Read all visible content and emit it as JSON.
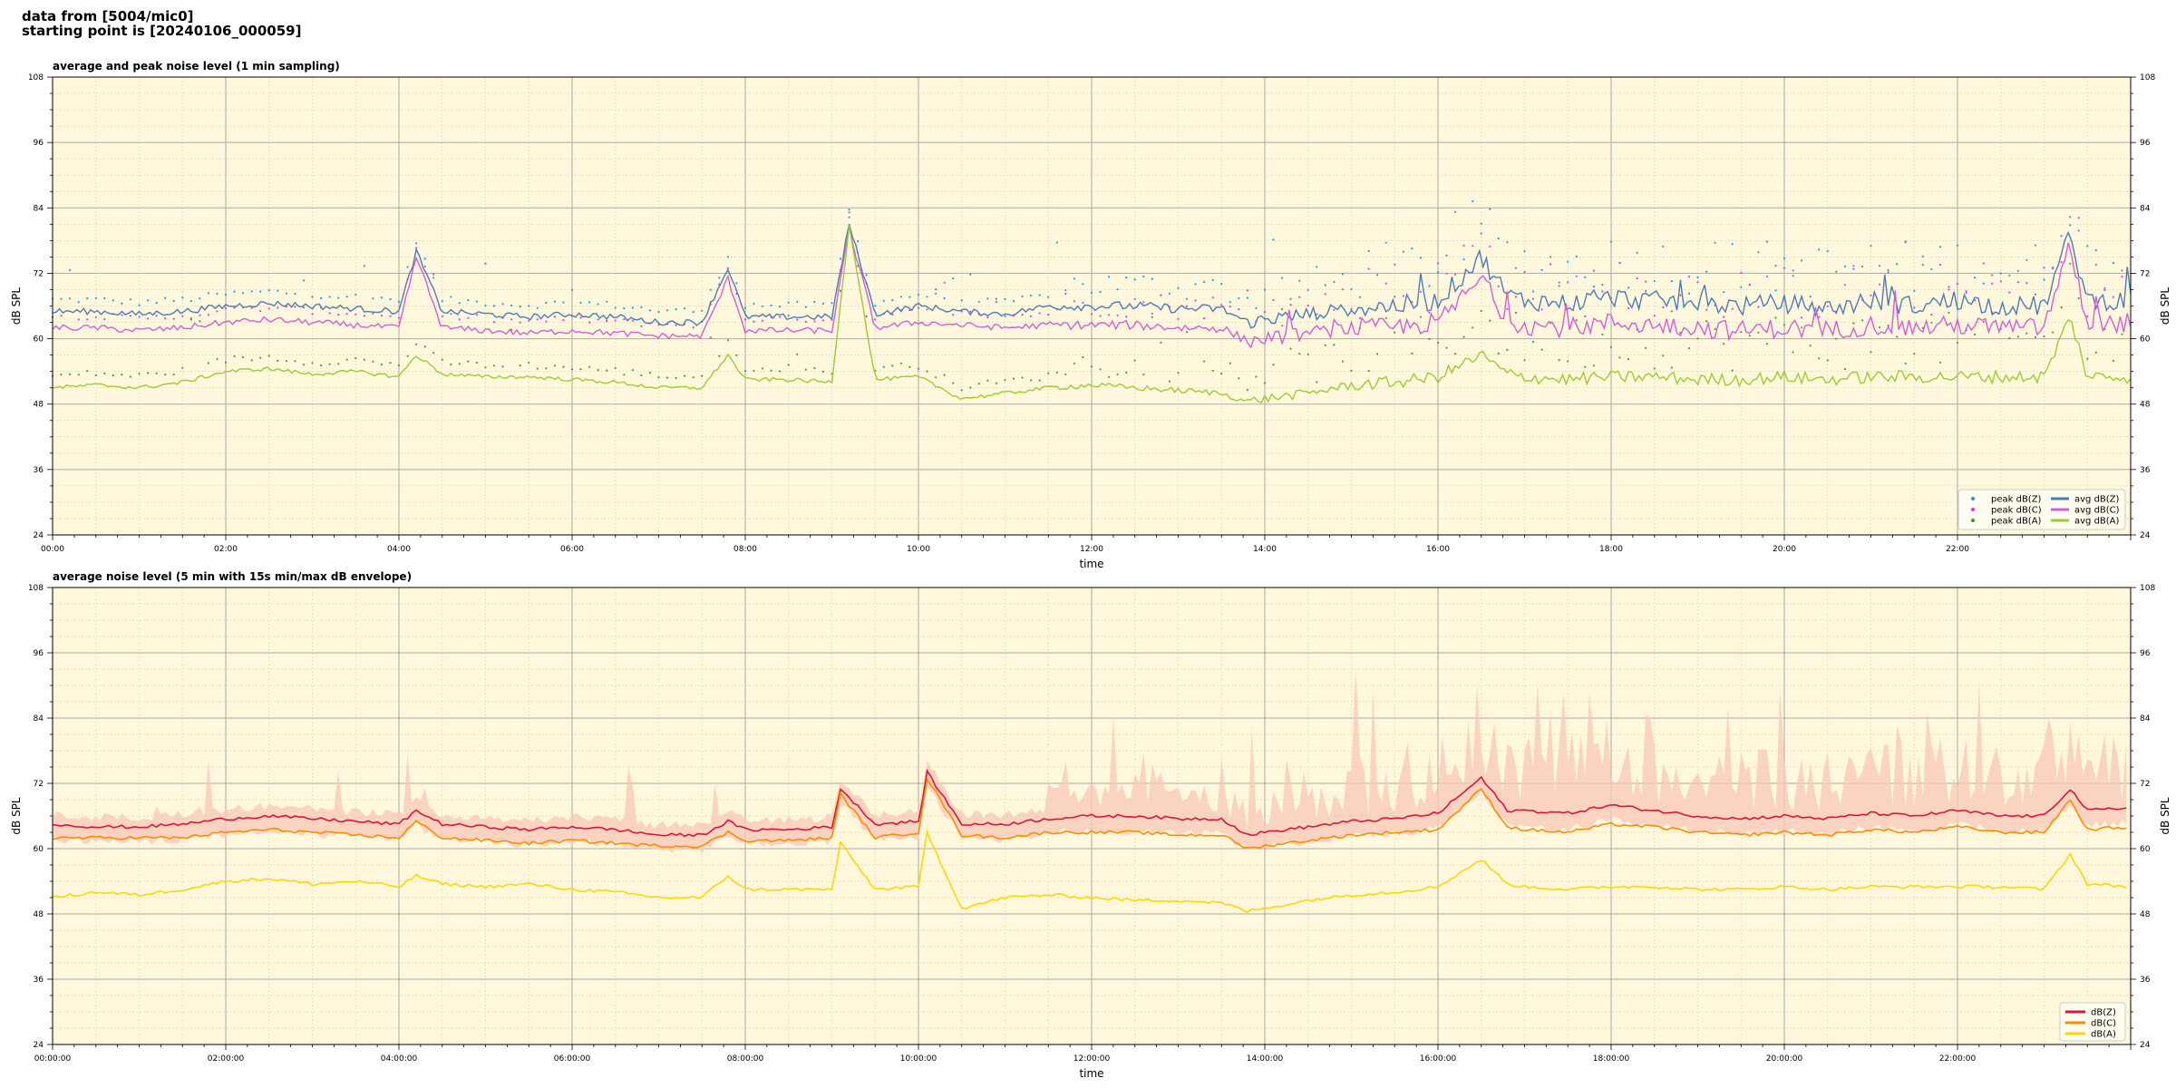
{
  "header": {
    "source": "data from [5004/mic0]",
    "start": "starting point is [20240106_000059]"
  },
  "chart_data": [
    {
      "type": "scatter+line",
      "title": "average and peak noise level (1 min sampling)",
      "xlabel": "time",
      "ylabel": "dB SPL",
      "xlim_hours": [
        0,
        24
      ],
      "ylim": [
        24,
        108
      ],
      "yticks": [
        24,
        36,
        48,
        60,
        72,
        84,
        96,
        108
      ],
      "xticks": [
        "00:00",
        "02:00",
        "04:00",
        "06:00",
        "08:00",
        "10:00",
        "12:00",
        "14:00",
        "16:00",
        "18:00",
        "20:00",
        "22:00"
      ],
      "grid": true,
      "legend_position": "bottom-right",
      "colors": {
        "background": "#fff8dc",
        "peakZ": "#1f9fe0",
        "peakC": "#e040e0",
        "peakA": "#4a9a4a",
        "avgZ": "#4b7db5",
        "avgC": "#d45ed8",
        "avgA": "#9acd32"
      },
      "legend": [
        "peak dB(Z)",
        "peak dB(C)",
        "peak dB(A)",
        "avg dB(Z)",
        "avg dB(C)",
        "avg dB(A)"
      ],
      "series": [
        {
          "name": "avg dB(Z)",
          "color": "#4b7db5",
          "x": [
            0,
            0.5,
            1,
            1.5,
            2,
            2.5,
            3,
            3.5,
            4,
            4.2,
            4.5,
            5,
            5.5,
            6,
            6.5,
            7,
            7.5,
            7.8,
            8,
            8.5,
            9,
            9.2,
            9.5,
            10,
            10.5,
            11,
            11.5,
            12,
            12.5,
            13,
            13.5,
            13.8,
            14,
            14.5,
            15,
            15.5,
            16,
            16.5,
            16.8,
            17,
            17.5,
            18,
            18.5,
            19,
            19.5,
            20,
            20.5,
            21,
            21.5,
            22,
            22.5,
            23,
            23.3,
            23.5,
            24
          ],
          "y": [
            65,
            65,
            64.5,
            65,
            66,
            66.5,
            66,
            65.5,
            65,
            76,
            65,
            64.5,
            64,
            64.5,
            64,
            63,
            63,
            73,
            64,
            64,
            64,
            81,
            64.5,
            66,
            65,
            64.5,
            66,
            66,
            66,
            65.5,
            65.5,
            63,
            63.5,
            64.5,
            65.5,
            66,
            67,
            75,
            68,
            67,
            66.5,
            67.5,
            67,
            66.5,
            66,
            66.5,
            65.5,
            67,
            66,
            67,
            66,
            66,
            79,
            67,
            67
          ]
        },
        {
          "name": "avg dB(C)",
          "color": "#d45ed8",
          "x": [
            0,
            0.5,
            1,
            1.5,
            2,
            2.5,
            3,
            3.5,
            4,
            4.2,
            4.5,
            5,
            5.5,
            6,
            6.5,
            7,
            7.5,
            7.8,
            8,
            8.5,
            9,
            9.2,
            9.5,
            10,
            10.5,
            11,
            11.5,
            12,
            12.5,
            13,
            13.5,
            13.8,
            14,
            14.5,
            15,
            15.5,
            16,
            16.5,
            16.8,
            17,
            17.5,
            18,
            18.5,
            19,
            19.5,
            20,
            20.5,
            21,
            21.5,
            22,
            22.5,
            23,
            23.3,
            23.5,
            24
          ],
          "y": [
            62,
            62,
            61.5,
            62,
            63,
            63.5,
            63,
            62.5,
            62,
            75,
            62,
            61.5,
            61,
            61.5,
            61,
            60.5,
            60.5,
            71,
            61.5,
            61.5,
            61.5,
            80,
            62,
            63,
            62.5,
            62,
            62.5,
            62.5,
            62.5,
            62,
            62,
            59.5,
            60,
            61,
            62,
            62,
            63,
            71,
            63.5,
            62.5,
            62,
            63,
            62.5,
            62,
            61.5,
            62,
            61.5,
            62.5,
            62,
            62.5,
            62,
            62,
            77,
            62.5,
            63
          ]
        },
        {
          "name": "avg dB(A)",
          "color": "#9acd32",
          "x": [
            0,
            0.5,
            1,
            1.5,
            2,
            2.5,
            3,
            3.5,
            4,
            4.2,
            4.5,
            5,
            5.5,
            6,
            6.5,
            7,
            7.5,
            7.8,
            8,
            8.5,
            9,
            9.2,
            9.5,
            10,
            10.5,
            11,
            11.5,
            12,
            12.5,
            13,
            13.5,
            13.8,
            14,
            14.5,
            15,
            15.5,
            16,
            16.5,
            16.8,
            17,
            17.5,
            18,
            18.5,
            19,
            19.5,
            20,
            20.5,
            21,
            21.5,
            22,
            22.5,
            23,
            23.3,
            23.5,
            24
          ],
          "y": [
            51,
            51.5,
            51,
            52,
            54,
            54.5,
            53.5,
            54,
            53,
            57,
            53.5,
            53,
            53,
            52.5,
            52,
            51,
            51,
            57,
            52.5,
            52.5,
            52,
            81,
            52.5,
            53,
            49,
            50,
            51,
            51.5,
            51,
            50.5,
            50,
            48.5,
            49,
            50,
            51.5,
            52,
            53,
            57,
            53.5,
            53,
            52.5,
            53,
            53,
            52.5,
            52.5,
            53,
            52.5,
            53,
            53,
            53,
            53,
            53,
            64,
            53,
            53
          ]
        }
      ]
    },
    {
      "type": "line+envelope",
      "title": "average noise level (5 min with 15s min/max dB envelope)",
      "xlabel": "time",
      "ylabel": "dB SPL",
      "xlim_hours": [
        0,
        24
      ],
      "ylim": [
        24,
        108
      ],
      "yticks": [
        24,
        36,
        48,
        60,
        72,
        84,
        96,
        108
      ],
      "xticks": [
        "00:00:00",
        "02:00:00",
        "04:00:00",
        "06:00:00",
        "08:00:00",
        "10:00:00",
        "12:00:00",
        "14:00:00",
        "16:00:00",
        "18:00:00",
        "20:00:00",
        "22:00:00"
      ],
      "grid": true,
      "legend_position": "bottom-right",
      "colors": {
        "background": "#fff8dc",
        "envelope": "#f8c8b8",
        "Z": "#dc143c",
        "C": "#ff8c00",
        "A": "#ffd700"
      },
      "legend": [
        "dB(Z)",
        "dB(C)",
        "dB(A)"
      ],
      "series": [
        {
          "name": "dB(Z)",
          "color": "#dc143c",
          "x": [
            0,
            0.5,
            1,
            1.5,
            2,
            2.5,
            3,
            3.5,
            4,
            4.2,
            4.5,
            5,
            5.5,
            6,
            6.5,
            7,
            7.5,
            7.8,
            8,
            8.5,
            9,
            9.1,
            9.5,
            10,
            10.1,
            10.5,
            11,
            11.5,
            12,
            12.5,
            13,
            13.5,
            13.8,
            14,
            14.5,
            15,
            15.5,
            16,
            16.5,
            16.8,
            17,
            17.5,
            18,
            18.5,
            19,
            19.5,
            20,
            20.5,
            21,
            21.5,
            22,
            22.5,
            23,
            23.3,
            23.5,
            24
          ],
          "y": [
            64.5,
            64,
            64,
            64.5,
            65.5,
            66,
            65.5,
            65,
            64.5,
            67,
            64.5,
            64,
            63.5,
            64,
            63.5,
            62.5,
            62.5,
            65,
            63.5,
            63.5,
            64,
            71,
            64.5,
            65,
            74,
            64.5,
            64.5,
            65.5,
            66,
            66,
            65.5,
            65.5,
            62.5,
            63,
            64,
            65,
            65.5,
            66.5,
            73,
            67,
            67,
            66.5,
            68,
            67,
            66,
            65.5,
            66,
            65.5,
            66.5,
            66,
            67,
            66,
            66,
            71,
            67,
            67.5
          ]
        },
        {
          "name": "dB(C)",
          "color": "#ff8c00",
          "x": [
            0,
            0.5,
            1,
            1.5,
            2,
            2.5,
            3,
            3.5,
            4,
            4.2,
            4.5,
            5,
            5.5,
            6,
            6.5,
            7,
            7.5,
            7.8,
            8,
            8.5,
            9,
            9.1,
            9.5,
            10,
            10.1,
            10.5,
            11,
            11.5,
            12,
            12.5,
            13,
            13.5,
            13.8,
            14,
            14.5,
            15,
            15.5,
            16,
            16.5,
            16.8,
            17,
            17.5,
            18,
            18.5,
            19,
            19.5,
            20,
            20.5,
            21,
            21.5,
            22,
            22.5,
            23,
            23.3,
            23.5,
            24
          ],
          "y": [
            62,
            62,
            62,
            62,
            63,
            63.5,
            63,
            62.5,
            62,
            65,
            62,
            61.5,
            61,
            61.5,
            61,
            60.5,
            60.5,
            63,
            61.5,
            61.5,
            62,
            70,
            62,
            63,
            73,
            62.5,
            62,
            63,
            63,
            63,
            62.5,
            62.5,
            60,
            60.5,
            61.5,
            62.5,
            63,
            63.5,
            71,
            64,
            63.5,
            63,
            64.5,
            64,
            63,
            62.5,
            63,
            62.5,
            63.5,
            63,
            64,
            63,
            63,
            69,
            63.5,
            64
          ]
        },
        {
          "name": "dB(A)",
          "color": "#ffd700",
          "x": [
            0,
            0.5,
            1,
            1.5,
            2,
            2.5,
            3,
            3.5,
            4,
            4.2,
            4.5,
            5,
            5.5,
            6,
            6.5,
            7,
            7.5,
            7.8,
            8,
            8.5,
            9,
            9.1,
            9.5,
            10,
            10.1,
            10.5,
            11,
            11.5,
            12,
            12.5,
            13,
            13.5,
            13.8,
            14,
            14.5,
            15,
            15.5,
            16,
            16.5,
            16.8,
            17,
            17.5,
            18,
            18.5,
            19,
            19.5,
            20,
            20.5,
            21,
            21.5,
            22,
            22.5,
            23,
            23.3,
            23.5,
            24
          ],
          "y": [
            51,
            52,
            51.5,
            52.5,
            54,
            54.5,
            53.5,
            54,
            53,
            55,
            53.5,
            53,
            53.5,
            52.5,
            52,
            51,
            51,
            55,
            52.5,
            52.5,
            52.5,
            61,
            52.5,
            53,
            63,
            49,
            51,
            51.5,
            51,
            50.5,
            50.5,
            50,
            48.5,
            49,
            50.5,
            51.5,
            52,
            53,
            58,
            53.5,
            53,
            52.5,
            53,
            53,
            52.5,
            52.5,
            53,
            52.5,
            53,
            53,
            53,
            53,
            52.5,
            59,
            53.5,
            53
          ]
        }
      ]
    }
  ]
}
